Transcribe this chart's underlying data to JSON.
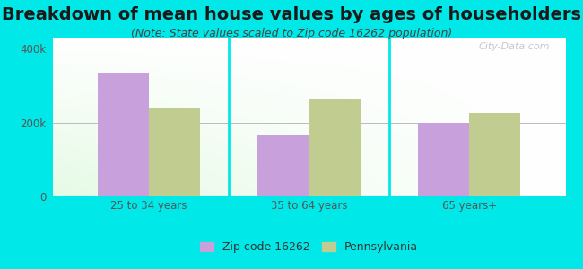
{
  "title": "Breakdown of mean house values by ages of householders",
  "subtitle": "(Note: State values scaled to Zip code 16262 population)",
  "categories": [
    "25 to 34 years",
    "35 to 64 years",
    "65 years+"
  ],
  "zip_values": [
    335000,
    165000,
    200000
  ],
  "state_values": [
    240000,
    265000,
    225000
  ],
  "zip_color": "#c8a0dc",
  "state_color": "#c0cc90",
  "background_color": "#00e8e8",
  "ylim": [
    0,
    430000
  ],
  "yticks": [
    0,
    200000,
    400000
  ],
  "ytick_labels": [
    "0",
    "200k",
    "400k"
  ],
  "legend_zip": "Zip code 16262",
  "legend_state": "Pennsylvania",
  "bar_width": 0.32,
  "title_fontsize": 14,
  "subtitle_fontsize": 9,
  "watermark": "City-Data.com"
}
